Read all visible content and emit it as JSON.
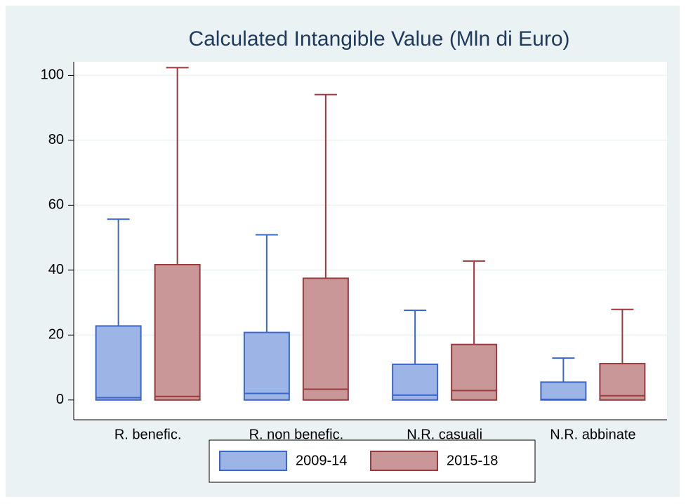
{
  "chart_data": {
    "type": "box",
    "title": "Calculated Intangible Value (Mln di Euro)",
    "categories": [
      "R. benefic.",
      "R. non benefic.",
      "N.R. casuali",
      "N.R. abbinate"
    ],
    "series": [
      {
        "name": "2009-14",
        "color": "#9db4e6",
        "edge": "#3a67c8",
        "min": [
          0,
          0,
          0,
          0
        ],
        "q1": [
          0,
          0,
          0,
          0
        ],
        "median": [
          0.7,
          2.0,
          1.5,
          0.2
        ],
        "q3": [
          22.8,
          20.8,
          11.0,
          5.5
        ],
        "max": [
          55.7,
          50.9,
          27.6,
          12.9
        ]
      },
      {
        "name": "2015-18",
        "color": "#c99798",
        "edge": "#9b3a3e",
        "min": [
          0,
          0,
          0,
          0
        ],
        "q1": [
          0,
          0,
          0,
          0
        ],
        "median": [
          1.1,
          3.3,
          2.9,
          1.3
        ],
        "q3": [
          41.7,
          37.5,
          17.1,
          11.2
        ],
        "max": [
          102.4,
          94.1,
          42.8,
          27.9
        ]
      }
    ],
    "ylim": [
      -6.1,
      104.2
    ],
    "yticks": [
      0,
      20,
      40,
      60,
      80,
      100
    ],
    "grid": true
  }
}
